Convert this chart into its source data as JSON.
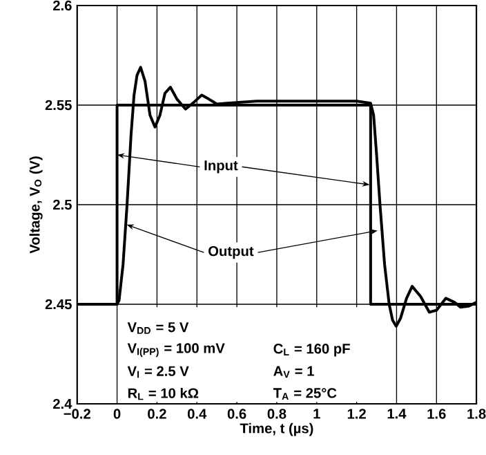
{
  "chart_data": {
    "type": "line",
    "xlabel": "Time, t (µs)",
    "ylabel": "Voltage, V$_{O}$ (V)",
    "xlim": [
      -0.2,
      1.8
    ],
    "ylim": [
      2.4,
      2.6
    ],
    "xticks": [
      {
        "value": -0.2,
        "label": "−0.2"
      },
      0,
      0.2,
      0.4,
      0.6,
      0.8,
      1,
      1.2,
      1.4,
      1.6,
      1.8
    ],
    "yticks": [
      2.4,
      2.45,
      2.5,
      2.55,
      2.6
    ],
    "grid": true,
    "marker": "none",
    "line_style": "solid",
    "series": [
      {
        "color": "#000000",
        "x": [
          -0.2,
          0,
          0,
          1.27,
          1.27,
          1.8
        ],
        "values": [
          2.45,
          2.45,
          2.55,
          2.55,
          2.45,
          2.45
        ]
      },
      {
        "color": "#000000",
        "x": [
          -0.2,
          0,
          0.01,
          0.03,
          0.05,
          0.07,
          0.085,
          0.1,
          0.118,
          0.14,
          0.165,
          0.19,
          0.215,
          0.24,
          0.267,
          0.3,
          0.343,
          0.38,
          0.424,
          0.46,
          0.5,
          0.55,
          0.7,
          1.0,
          1.2,
          1.27,
          1.285,
          1.3,
          1.317,
          1.34,
          1.363,
          1.38,
          1.398,
          1.42,
          1.45,
          1.478,
          1.52,
          1.564,
          1.6,
          1.647,
          1.69,
          1.72,
          1.76,
          1.8
        ],
        "values": [
          2.45,
          2.45,
          2.452,
          2.47,
          2.5,
          2.535,
          2.555,
          2.565,
          2.569,
          2.562,
          2.545,
          2.539,
          2.545,
          2.556,
          2.559,
          2.553,
          2.548,
          2.551,
          2.555,
          2.553,
          2.5505,
          2.551,
          2.552,
          2.552,
          2.552,
          2.551,
          2.545,
          2.525,
          2.5,
          2.47,
          2.45,
          2.442,
          2.439,
          2.443,
          2.453,
          2.459,
          2.454,
          2.446,
          2.447,
          2.453,
          2.451,
          2.4485,
          2.449,
          2.451
        ]
      }
    ],
    "annotations": [
      {
        "text": "Input",
        "x": 0,
        "y": 2.525
      },
      {
        "text": "Output",
        "x": 0.048,
        "y": 2.49
      },
      "V$_{DD}$ = 5 V",
      "V$_{I(PP)}$ = 100 mV",
      "V$_{I}$ = 2.5 V",
      "R$_{L}$ = 10 kΩ",
      "C$_{L}$ = 160 pF",
      "A$_{V}$ = 1",
      "T$_{A}$ = 25°C"
    ]
  }
}
